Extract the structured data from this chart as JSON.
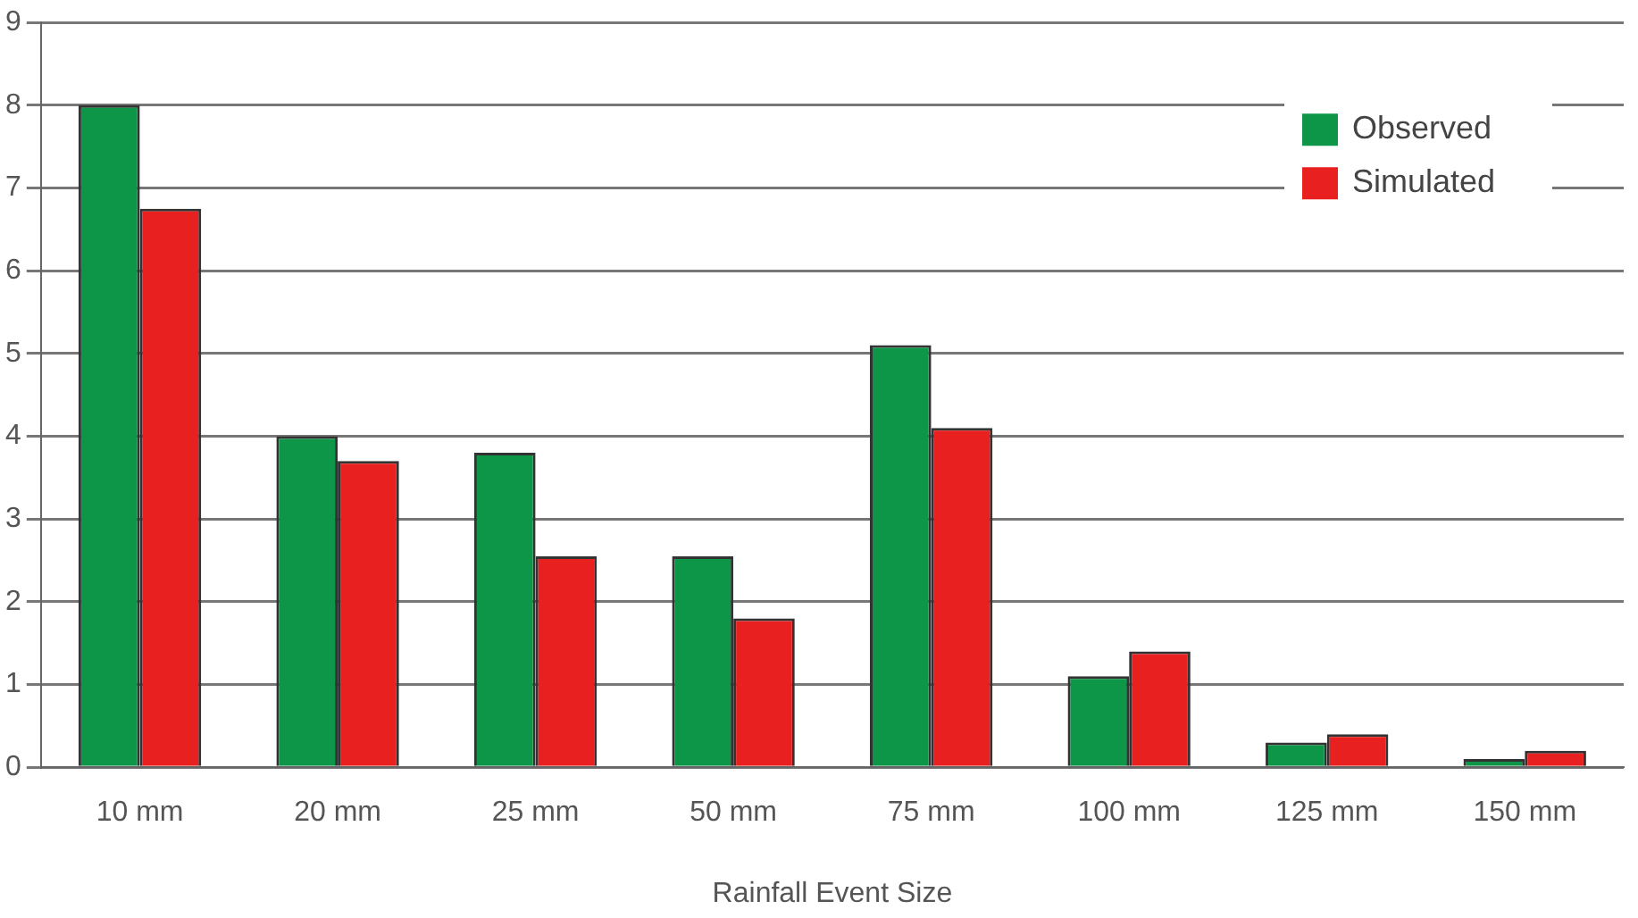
{
  "chart_data": {
    "type": "bar",
    "xlabel": "Rainfall Event Size",
    "categories": [
      "10 mm",
      "20 mm",
      "25 mm",
      "50 mm",
      "75 mm",
      "100 mm",
      "125 mm",
      "150 mm"
    ],
    "series": [
      {
        "name": "Observed",
        "color": "#0d9648",
        "values": [
          8,
          4,
          3.8,
          2.55,
          5.1,
          1.1,
          0.3,
          0.1
        ]
      },
      {
        "name": "Simulated",
        "color": "#e8201f",
        "values": [
          6.75,
          3.7,
          2.55,
          1.8,
          4.1,
          1.4,
          0.4,
          0.2
        ]
      }
    ],
    "ylim": [
      0,
      9
    ],
    "yticks": [
      0,
      1,
      2,
      3,
      4,
      5,
      6,
      7,
      8,
      9
    ],
    "grid": "y",
    "legend": "top right"
  }
}
